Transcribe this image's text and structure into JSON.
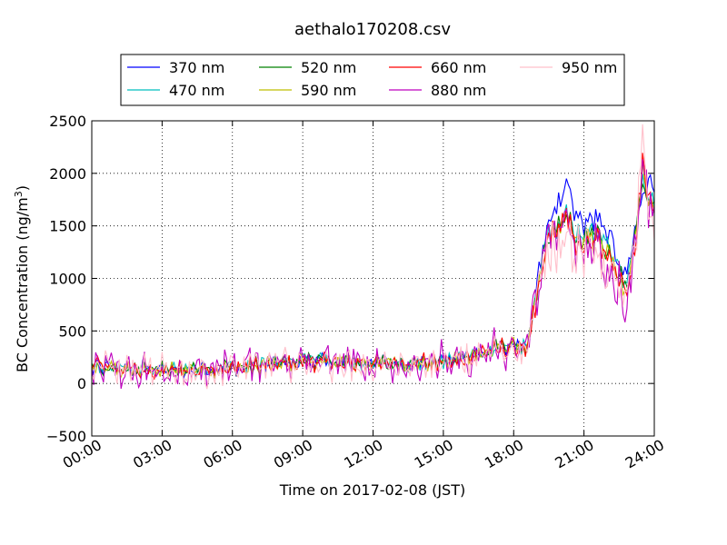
{
  "chart_data": {
    "type": "line",
    "title": "aethalo170208.csv",
    "xlabel": "Time on 2017-02-08 (JST)",
    "ylabel_main": "BC Concentration (ng/m",
    "ylabel_sup": "3",
    "ylabel_close": ")",
    "xlim": [
      0,
      24
    ],
    "ylim": [
      -500,
      2500
    ],
    "x_ticks": [
      0,
      3,
      6,
      9,
      12,
      15,
      18,
      21,
      24
    ],
    "x_tick_labels": [
      "00:00",
      "03:00",
      "06:00",
      "09:00",
      "12:00",
      "15:00",
      "18:00",
      "21:00",
      "24:00"
    ],
    "y_ticks": [
      -500,
      0,
      500,
      1000,
      1500,
      2000,
      2500
    ],
    "y_tick_labels": [
      "−500",
      "0",
      "500",
      "1000",
      "1500",
      "2000",
      "2500"
    ],
    "grid": true,
    "legend_location": "top, above plot, 4 columns",
    "series": [
      {
        "name": "370 nm",
        "color": "#0000ff",
        "noise": 70,
        "x": [
          0,
          3,
          6,
          9,
          12,
          15,
          18,
          18.6,
          19.2,
          19.5,
          19.8,
          20.3,
          20.6,
          21,
          21.5,
          22,
          22.3,
          22.6,
          22.9,
          23.2,
          23.5,
          23.8,
          24
        ],
        "y": [
          150,
          120,
          150,
          220,
          190,
          210,
          380,
          340,
          1200,
          1550,
          1700,
          1850,
          1650,
          1500,
          1550,
          1450,
          1300,
          1100,
          1100,
          1500,
          1800,
          1950,
          1850
        ]
      },
      {
        "name": "470 nm",
        "color": "#00bfbf",
        "noise": 70,
        "x": [
          0,
          3,
          6,
          9,
          12,
          15,
          18,
          18.6,
          19.2,
          19.5,
          19.8,
          20.3,
          20.6,
          21,
          21.5,
          22,
          22.3,
          22.6,
          22.9,
          23.2,
          23.5,
          23.8,
          24
        ],
        "y": [
          150,
          120,
          150,
          230,
          190,
          210,
          380,
          340,
          1150,
          1420,
          1500,
          1580,
          1430,
          1400,
          1450,
          1350,
          1200,
          1000,
          1000,
          1450,
          1900,
          1850,
          1700
        ]
      },
      {
        "name": "520 nm",
        "color": "#008000",
        "noise": 70,
        "x": [
          0,
          3,
          6,
          9,
          12,
          15,
          18,
          18.6,
          19.2,
          19.5,
          19.8,
          20.3,
          20.6,
          21,
          21.5,
          22,
          22.3,
          22.6,
          22.9,
          23.2,
          23.5,
          23.8,
          24
        ],
        "y": [
          150,
          120,
          150,
          220,
          190,
          200,
          370,
          330,
          1120,
          1400,
          1470,
          1560,
          1400,
          1350,
          1400,
          1300,
          1150,
          980,
          980,
          1400,
          1950,
          1800,
          1650
        ]
      },
      {
        "name": "590 nm",
        "color": "#bfbf00",
        "noise": 70,
        "x": [
          0,
          3,
          6,
          9,
          12,
          15,
          18,
          18.6,
          19.2,
          19.5,
          19.8,
          20.3,
          20.6,
          21,
          21.5,
          22,
          22.3,
          22.6,
          22.9,
          23.2,
          23.5,
          23.8,
          24
        ],
        "y": [
          150,
          120,
          150,
          215,
          185,
          200,
          370,
          330,
          1100,
          1380,
          1450,
          1540,
          1380,
          1330,
          1380,
          1280,
          1130,
          960,
          960,
          1380,
          2000,
          1780,
          1600
        ]
      },
      {
        "name": "660 nm",
        "color": "#ff0000",
        "noise": 80,
        "x": [
          0,
          3,
          6,
          9,
          12,
          15,
          18,
          18.6,
          19.2,
          19.5,
          19.8,
          20.3,
          20.6,
          21,
          21.5,
          22,
          22.3,
          22.6,
          22.9,
          23.2,
          23.5,
          23.8,
          24
        ],
        "y": [
          150,
          120,
          150,
          210,
          185,
          200,
          370,
          330,
          1080,
          1360,
          1430,
          1520,
          1350,
          1300,
          1350,
          1250,
          1100,
          950,
          950,
          1350,
          2100,
          1750,
          1550
        ]
      },
      {
        "name": "880 nm",
        "color": "#bf00bf",
        "noise": 170,
        "x": [
          0,
          3,
          6,
          9,
          12,
          15,
          18,
          18.6,
          19.2,
          19.5,
          19.8,
          20.3,
          20.6,
          21,
          21.5,
          22,
          22.3,
          22.6,
          22.9,
          23.2,
          23.5,
          23.8,
          24
        ],
        "y": [
          150,
          110,
          150,
          200,
          180,
          190,
          360,
          320,
          1050,
          1330,
          1400,
          1480,
          1300,
          1250,
          1300,
          1200,
          1050,
          900,
          900,
          1300,
          2200,
          1700,
          1500
        ]
      },
      {
        "name": "950 nm",
        "color": "#ffc0cb",
        "noise": 140,
        "x": [
          0,
          3,
          6,
          9,
          12,
          15,
          18,
          18.6,
          19.2,
          19.5,
          19.8,
          20.3,
          20.6,
          21,
          21.5,
          22,
          22.3,
          22.6,
          22.9,
          23.2,
          23.5,
          23.8,
          24
        ],
        "y": [
          150,
          110,
          140,
          190,
          170,
          180,
          340,
          310,
          1000,
          1280,
          1350,
          1400,
          1250,
          1200,
          1250,
          1150,
          1000,
          870,
          870,
          1250,
          2300,
          1650,
          1450
        ]
      }
    ]
  }
}
